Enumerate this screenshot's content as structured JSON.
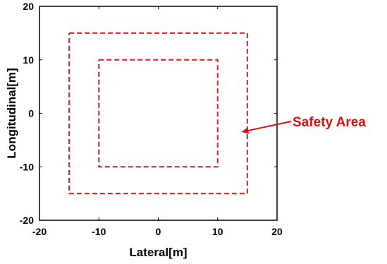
{
  "chart_data": {
    "type": "line",
    "title": "",
    "xlabel": "Lateral[m]",
    "ylabel": "Longitudinal[m]",
    "xlim": [
      -20,
      20
    ],
    "ylim": [
      -20,
      20
    ],
    "xticks": [
      "-20",
      "-10",
      "0",
      "10",
      "20"
    ],
    "yticks": [
      "-20",
      "-10",
      "0",
      "10",
      "20"
    ],
    "grid": false,
    "series": [
      {
        "style": "dashed",
        "color": "#d42020",
        "x": [
          -10,
          10,
          10,
          -10,
          -10
        ],
        "y": [
          10,
          10,
          -10,
          -10,
          10
        ]
      },
      {
        "style": "dashed",
        "color": "#d42020",
        "x": [
          -15,
          15,
          15,
          -15,
          -15
        ],
        "y": [
          15,
          15,
          -15,
          -15,
          15
        ]
      }
    ],
    "annotation": {
      "text": "Safety Area",
      "color": "#e01010",
      "arrow_to": [
        14,
        -3.5
      ]
    }
  }
}
